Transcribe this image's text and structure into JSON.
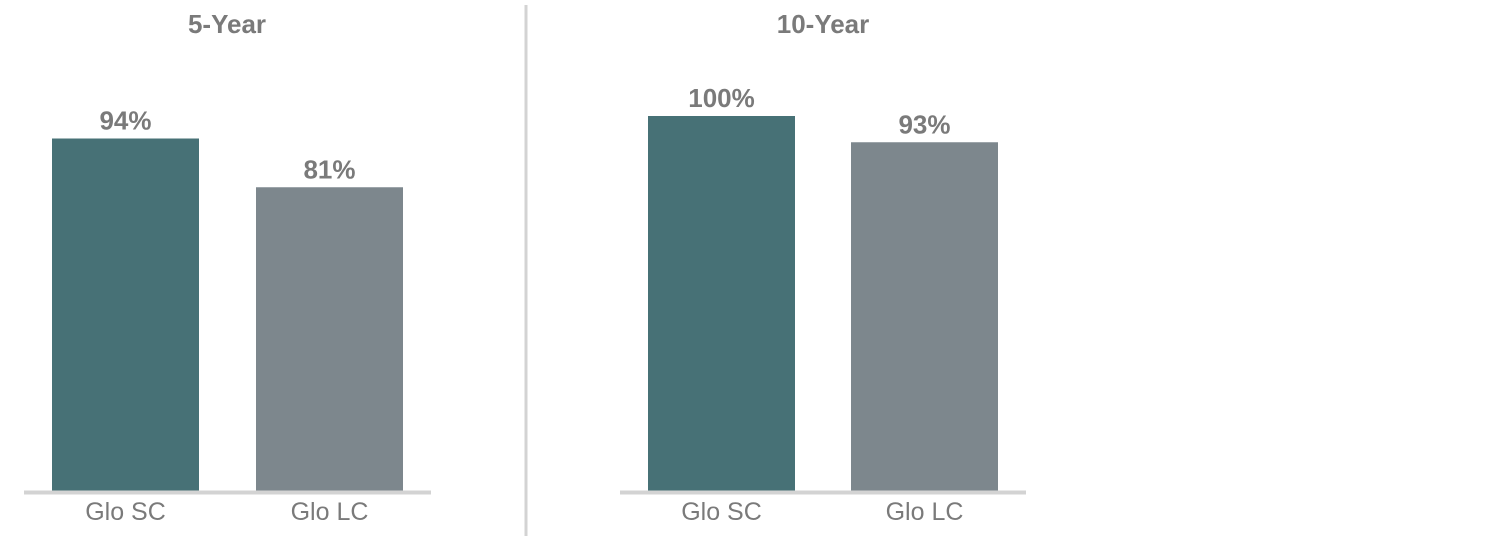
{
  "chart_data": [
    {
      "type": "bar",
      "title": "5-Year",
      "categories": [
        "Glo SC",
        "Glo LC"
      ],
      "values": [
        94,
        81
      ],
      "data_labels": [
        "94%",
        "81%"
      ],
      "colors": [
        "#477176",
        "#7d878d"
      ],
      "ylim": [
        0,
        100
      ],
      "grid": false,
      "legend": "none"
    },
    {
      "type": "bar",
      "title": "10-Year",
      "categories": [
        "Glo SC",
        "Glo LC"
      ],
      "values": [
        100,
        93
      ],
      "data_labels": [
        "100%",
        "93%"
      ],
      "colors": [
        "#477176",
        "#7d878d"
      ],
      "ylim": [
        0,
        100
      ],
      "grid": false,
      "legend": "none"
    }
  ],
  "style": {
    "axis_color": "#d3d3d3",
    "divider_color": "#d3d3d3",
    "text_color": "#7a7a7a"
  }
}
